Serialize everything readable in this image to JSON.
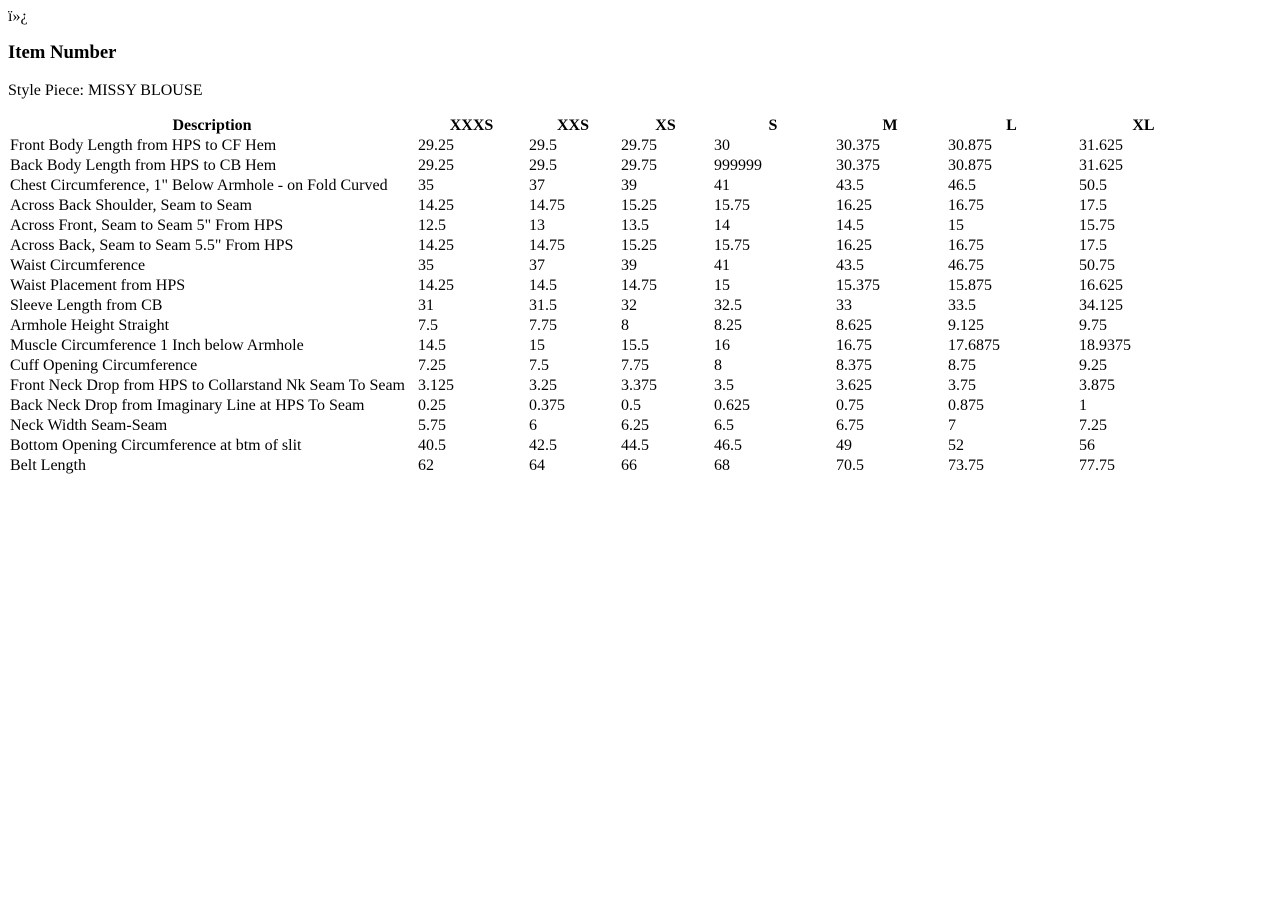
{
  "bom_text": "ï»¿",
  "title": "Item Number",
  "style_piece": "Style Piece: MISSY BLOUSE",
  "table": {
    "headers": [
      "Description",
      "XXXS",
      "XXS",
      "XS",
      "S",
      "M",
      "L",
      "XL"
    ],
    "rows": [
      [
        "Front Body Length from HPS to CF Hem",
        "29.25",
        "29.5",
        "29.75",
        "30",
        "30.375",
        "30.875",
        "31.625"
      ],
      [
        "Back Body Length from HPS to CB Hem",
        "29.25",
        "29.5",
        "29.75",
        "999999",
        "30.375",
        "30.875",
        "31.625"
      ],
      [
        "Chest Circumference, 1\" Below Armhole - on Fold Curved",
        "35",
        "37",
        "39",
        "41",
        "43.5",
        "46.5",
        "50.5"
      ],
      [
        "Across Back Shoulder, Seam to Seam",
        "14.25",
        "14.75",
        "15.25",
        "15.75",
        "16.25",
        "16.75",
        "17.5"
      ],
      [
        "Across Front, Seam to Seam 5\" From HPS",
        "12.5",
        "13",
        "13.5",
        "14",
        "14.5",
        "15",
        "15.75"
      ],
      [
        "Across Back, Seam to Seam 5.5\" From HPS",
        "14.25",
        "14.75",
        "15.25",
        "15.75",
        "16.25",
        "16.75",
        "17.5"
      ],
      [
        "Waist Circumference",
        "35",
        "37",
        "39",
        "41",
        "43.5",
        "46.75",
        "50.75"
      ],
      [
        "Waist Placement from HPS",
        "14.25",
        "14.5",
        "14.75",
        "15",
        "15.375",
        "15.875",
        "16.625"
      ],
      [
        "Sleeve Length from CB",
        "31",
        "31.5",
        "32",
        "32.5",
        "33",
        "33.5",
        "34.125"
      ],
      [
        "Armhole Height Straight",
        "7.5",
        "7.75",
        "8",
        "8.25",
        "8.625",
        "9.125",
        "9.75"
      ],
      [
        "Muscle Circumference 1 Inch below Armhole",
        "14.5",
        "15",
        "15.5",
        "16",
        "16.75",
        "17.6875",
        "18.9375"
      ],
      [
        "Cuff Opening Circumference",
        "7.25",
        "7.5",
        "7.75",
        "8",
        "8.375",
        "8.75",
        "9.25"
      ],
      [
        "Front Neck Drop from HPS to Collarstand Nk Seam To Seam",
        "3.125",
        "3.25",
        "3.375",
        "3.5",
        "3.625",
        "3.75",
        "3.875"
      ],
      [
        "Back Neck Drop from Imaginary Line at HPS To Seam",
        "0.25",
        "0.375",
        "0.5",
        "0.625",
        "0.75",
        "0.875",
        "1"
      ],
      [
        "Neck Width Seam-Seam",
        "5.75",
        "6",
        "6.25",
        "6.5",
        "6.75",
        "7",
        "7.25"
      ],
      [
        "Bottom Opening Circumference at btm of slit",
        "40.5",
        "42.5",
        "44.5",
        "46.5",
        "49",
        "52",
        "56"
      ],
      [
        "Belt Length",
        "62",
        "64",
        "66",
        "68",
        "70.5",
        "73.75",
        "77.75"
      ]
    ]
  }
}
